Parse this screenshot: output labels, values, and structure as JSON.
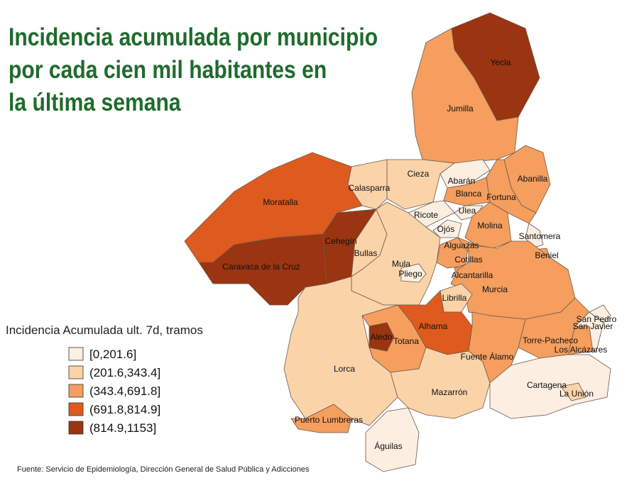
{
  "title_lines": [
    "Incidencia acumulada por municipio",
    "por cada cien mil habitantes en",
    "la última semana"
  ],
  "legend": {
    "title": "Incidencia Acumulada ult. 7d, tramos",
    "items": [
      {
        "label": "[0,201.6]",
        "color": "#fdeee2"
      },
      {
        "label": "(201.6,343.4]",
        "color": "#fbd3a9"
      },
      {
        "label": "(343.4,691.8]",
        "color": "#f59e5e"
      },
      {
        "label": "(691.8,814.9]",
        "color": "#df5a1e"
      },
      {
        "label": "(814.9,1153]",
        "color": "#9b3410"
      }
    ]
  },
  "municipalities": [
    {
      "name": "Yecla",
      "color": "#9b3410"
    },
    {
      "name": "Jumilla",
      "color": "#f59e5e"
    },
    {
      "name": "Abanilla",
      "color": "#f59e5e"
    },
    {
      "name": "Fortuna",
      "color": "#f59e5e"
    },
    {
      "name": "Cieza",
      "color": "#fbd3a9"
    },
    {
      "name": "Abarán",
      "color": "#fdeee2"
    },
    {
      "name": "Blanca",
      "color": "#f59e5e"
    },
    {
      "name": "Calasparra",
      "color": "#fbd3a9"
    },
    {
      "name": "Moratalla",
      "color": "#df5a1e"
    },
    {
      "name": "Ricote",
      "color": "#fdeee2"
    },
    {
      "name": "Ulea",
      "color": "#fdeee2"
    },
    {
      "name": "Ojós",
      "color": "#fdeee2"
    },
    {
      "name": "Molina",
      "color": "#f59e5e"
    },
    {
      "name": "Santomera",
      "color": "#fdeee2"
    },
    {
      "name": "Cehegín",
      "color": "#9b3410"
    },
    {
      "name": "Bullas",
      "color": "#fbd3a9"
    },
    {
      "name": "Caravaca de la Cruz",
      "color": "#9b3410"
    },
    {
      "name": "Mula",
      "color": "#fbd3a9"
    },
    {
      "name": "Pliego",
      "color": "#fdeee2"
    },
    {
      "name": "Cotillas",
      "color": "#f59e5e"
    },
    {
      "name": "Alguazas",
      "color": "#f59e5e"
    },
    {
      "name": "Alcantarilla",
      "color": "#f59e5e"
    },
    {
      "name": "Beniel",
      "color": "#f59e5e"
    },
    {
      "name": "Murcia",
      "color": "#f59e5e"
    },
    {
      "name": "Torre-Pacheco",
      "color": "#f59e5e"
    },
    {
      "name": "Librilla",
      "color": "#fbd3a9"
    },
    {
      "name": "Alhama",
      "color": "#df5a1e"
    },
    {
      "name": "Totana",
      "color": "#f59e5e"
    },
    {
      "name": "Aledo",
      "color": "#9b3410"
    },
    {
      "name": "Lorca",
      "color": "#fbd3a9"
    },
    {
      "name": "Puerto Lumbreras",
      "color": "#f59e5e"
    },
    {
      "name": "Águilas",
      "color": "#fdeee2"
    },
    {
      "name": "Mazarrón",
      "color": "#fbd3a9"
    },
    {
      "name": "Fuente Álamo",
      "color": "#f59e5e"
    },
    {
      "name": "Cartagena",
      "color": "#fdeee2"
    },
    {
      "name": "La Unión",
      "color": "#fbd3a9"
    },
    {
      "name": "Los Alcázares",
      "color": "#f59e5e"
    },
    {
      "name": "San Javier",
      "color": "#fdeee2"
    },
    {
      "name": "San Pedro",
      "color": "#fdeee2"
    }
  ],
  "source": "Fuente: Servicio de Epidemiología, Dirección General de Salud Pública y Adicciones"
}
